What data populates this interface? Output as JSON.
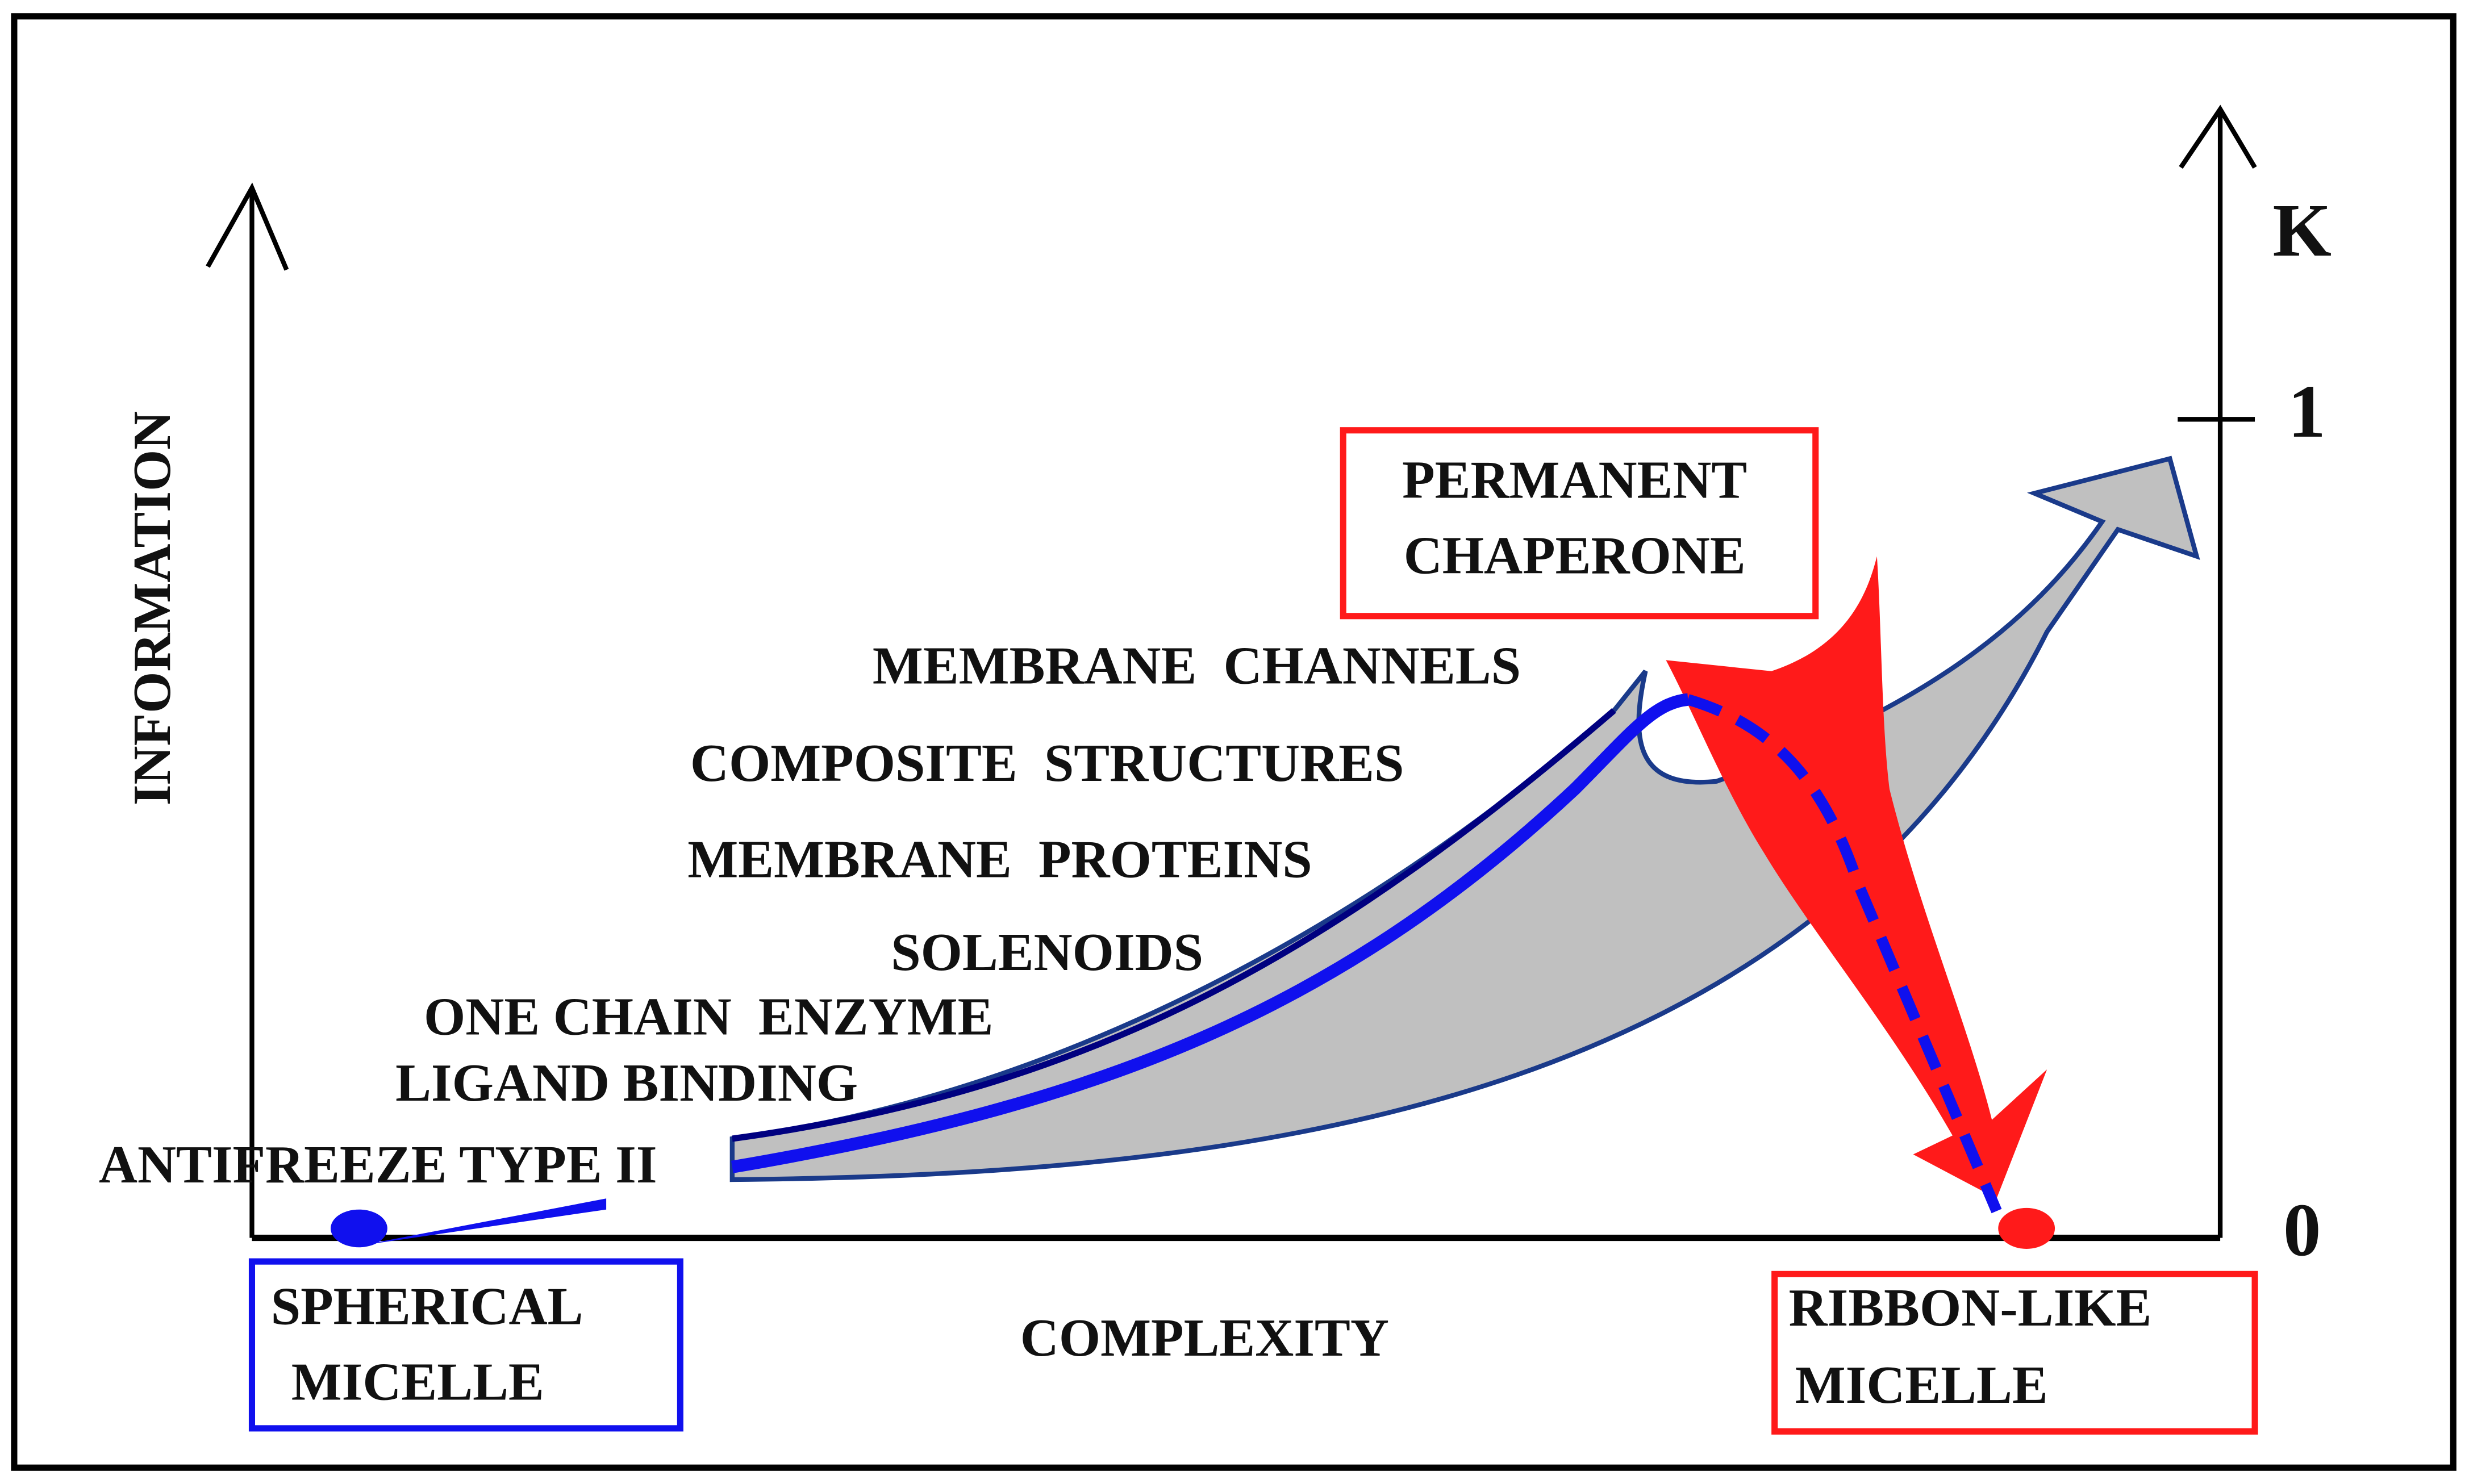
{
  "axes": {
    "y_label": "INFORMATION",
    "x_label": "COMPLEXITY",
    "k_label": "K",
    "k_top": "1",
    "k_bottom": "0"
  },
  "levels": [
    "MEMBRANE  CHANNELS",
    "COMPOSITE  STRUCTURES",
    "MEMBRANE  PROTEINS",
    "SOLENOIDS",
    "ONE CHAIN  ENZYME",
    "LIGAND BINDING",
    "ANTIFREEZE TYPE II"
  ],
  "boxes": {
    "spherical": [
      "SPHERICAL",
      "MICELLE"
    ],
    "ribbon": [
      "RIBBON-LIKE",
      "MICELLE"
    ],
    "chaperone": [
      "PERMANENT",
      "CHAPERONE"
    ]
  }
}
